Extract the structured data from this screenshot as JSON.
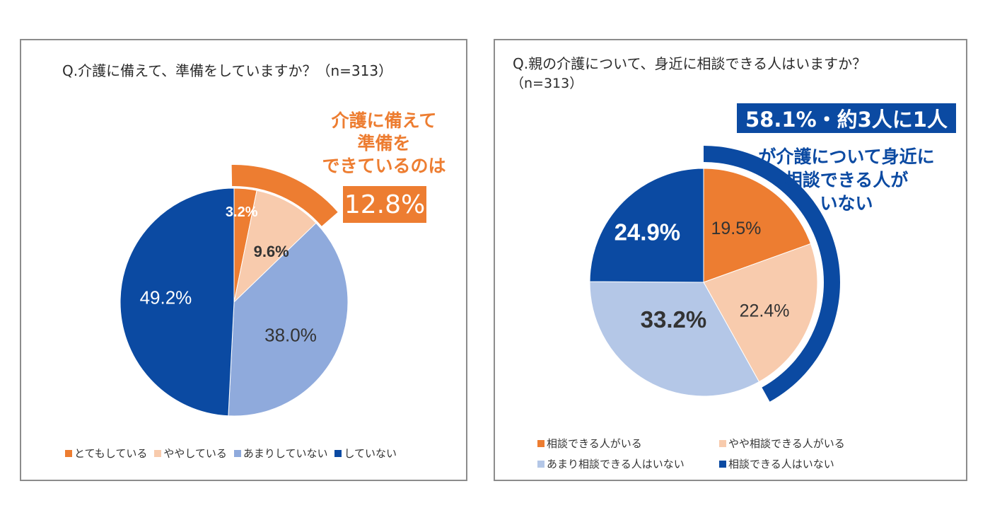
{
  "chart_data": [
    {
      "type": "pie",
      "title": "Q.介護に備えて、準備をしていますか？（n=313）",
      "categories": [
        "とてもしている",
        "ややしている",
        "あまりしていない",
        "していない"
      ],
      "values": [
        3.2,
        9.6,
        38.0,
        49.2
      ],
      "value_labels": [
        "3.2%",
        "9.6%",
        "38.0%",
        "49.2%"
      ],
      "colors": [
        "#ED7D31",
        "#F8CBAD",
        "#8FAADC",
        "#0B4AA2"
      ],
      "legend": "bottom",
      "annotation": {
        "lines": [
          "介護に備えて",
          "準備を",
          "できているのは"
        ],
        "highlight": "12.8%",
        "color": "#ED7D31"
      }
    },
    {
      "type": "pie",
      "title": "Q.親の介護について、身近に相談できる人はいますか？",
      "subtitle": "（n=313）",
      "categories": [
        "相談できる人がいる",
        "やや相談できる人がいる",
        "あまり相談できる人はいない",
        "相談できる人はいない"
      ],
      "values": [
        19.5,
        22.4,
        33.2,
        24.9
      ],
      "value_labels": [
        "19.5%",
        "22.4%",
        "33.2%",
        "24.9%"
      ],
      "colors": [
        "#ED7D31",
        "#F8CBAD",
        "#B4C7E7",
        "#0B4AA2"
      ],
      "legend": "bottom",
      "annotation": {
        "highlight": "58.1%・約3人に1人",
        "lines": [
          "が介護について身近に",
          "相談できる人が",
          "いない"
        ],
        "color": "#0B4AA2"
      }
    }
  ]
}
